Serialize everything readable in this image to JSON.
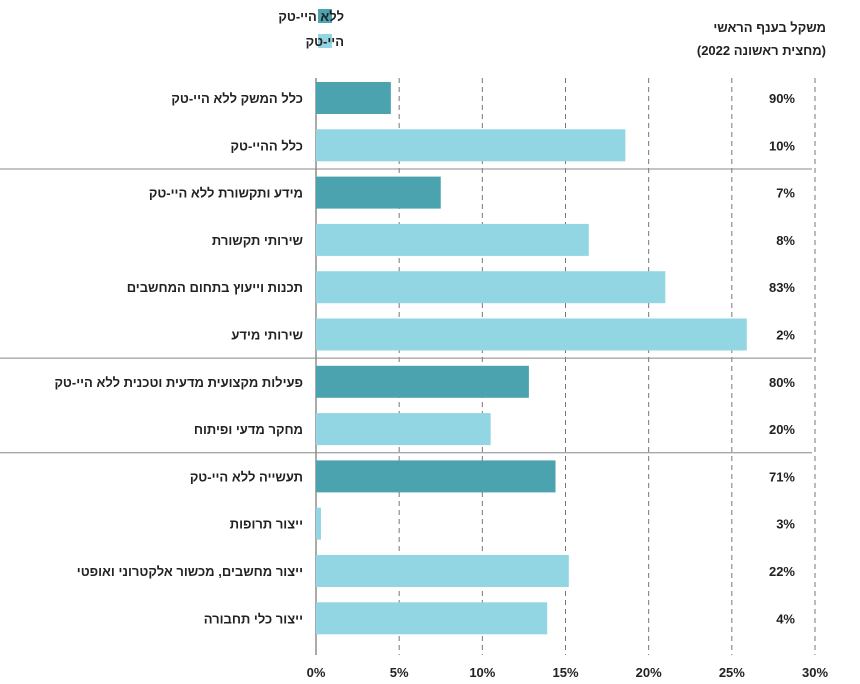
{
  "chart_data": {
    "type": "bar",
    "orientation": "horizontal",
    "xlim": [
      0,
      30
    ],
    "x_ticks": [
      "0%",
      "5%",
      "10%",
      "15%",
      "20%",
      "25%",
      "30%"
    ],
    "x_tick_values": [
      0,
      5,
      10,
      15,
      20,
      25,
      30
    ],
    "grid": "vertical dashed",
    "legend": {
      "placement": "top",
      "entries": [
        {
          "name": "ללא היי-טק",
          "color": "#4aa3ae"
        },
        {
          "name": "היי-טק",
          "color": "#93d6e3"
        }
      ]
    },
    "weight_header": [
      "משקל בענף הראשי",
      "(מחצית ראשונה 2022)"
    ],
    "categories": [
      {
        "label": "כלל המשק ללא היי-טק",
        "value": 4.5,
        "series": "ללא היי-טק",
        "weight": "90%"
      },
      {
        "label": "כלל ההיי-טק",
        "value": 18.6,
        "series": "היי-טק",
        "weight": "10%"
      },
      {
        "label": "מידע ותקשורת ללא היי-טק",
        "value": 7.5,
        "series": "ללא היי-טק",
        "weight": "7%"
      },
      {
        "label": "שירותי תקשורת",
        "value": 16.4,
        "series": "היי-טק",
        "weight": "8%"
      },
      {
        "label": "תכנות וייעוץ בתחום המחשבים",
        "value": 21.0,
        "series": "היי-טק",
        "weight": "83%"
      },
      {
        "label": "שירותי מידע",
        "value": 25.9,
        "series": "היי-טק",
        "weight": "2%"
      },
      {
        "label": "פעילות מקצועית מדעית וטכנית ללא היי-טק",
        "value": 12.8,
        "series": "ללא היי-טק",
        "weight": "80%"
      },
      {
        "label": "מחקר מדעי ופיתוח",
        "value": 10.5,
        "series": "היי-טק",
        "weight": "20%"
      },
      {
        "label": "תעשייה ללא היי-טק",
        "value": 14.4,
        "series": "ללא היי-טק",
        "weight": "71%"
      },
      {
        "label": "ייצור תרופות",
        "value": 0.3,
        "series": "היי-טק",
        "weight": "3%"
      },
      {
        "label": "ייצור מחשבים, מכשור אלקטרוני ואופטי",
        "value": 15.2,
        "series": "היי-טק",
        "weight": "22%"
      },
      {
        "label": "ייצור כלי תחבורה",
        "value": 13.9,
        "series": "היי-טק",
        "weight": "4%"
      }
    ],
    "group_breaks_after": [
      1,
      5,
      7
    ]
  }
}
